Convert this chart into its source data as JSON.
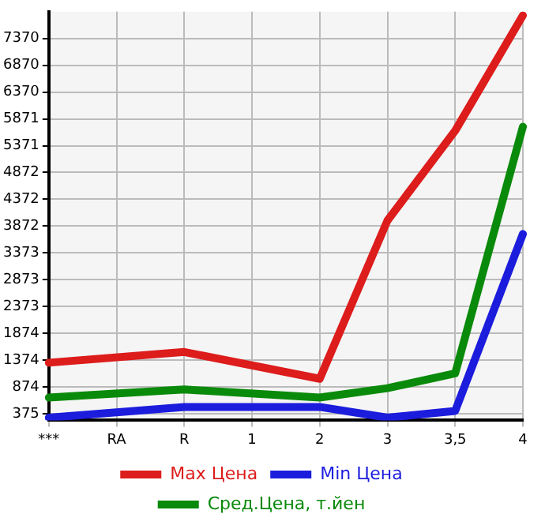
{
  "chart_data": {
    "type": "line",
    "categories": [
      "***",
      "RA",
      "R",
      "1",
      "2",
      "3",
      "3,5",
      "4"
    ],
    "series": [
      {
        "name": "Max Цена",
        "color": "#dd1c1c",
        "values": [
          1325,
          null,
          1525,
          null,
          1025,
          3975,
          5650,
          7800
        ]
      },
      {
        "name": "Min Цена",
        "color": "#1c1cdd",
        "values": [
          300,
          null,
          500,
          null,
          500,
          300,
          425,
          3725
        ]
      },
      {
        "name": "Сред.Цена, т.йен",
        "color": "#0a8a0a",
        "values": [
          675,
          null,
          825,
          null,
          675,
          850,
          1125,
          5725
        ]
      }
    ],
    "ylim": [
      250,
      7870
    ],
    "yticks": [
      375,
      874,
      1374,
      1874,
      2373,
      2873,
      3373,
      3872,
      4372,
      4872,
      5371,
      5871,
      6370,
      6870,
      7370
    ],
    "grid": true,
    "legend": "bottom",
    "marker": "none"
  }
}
